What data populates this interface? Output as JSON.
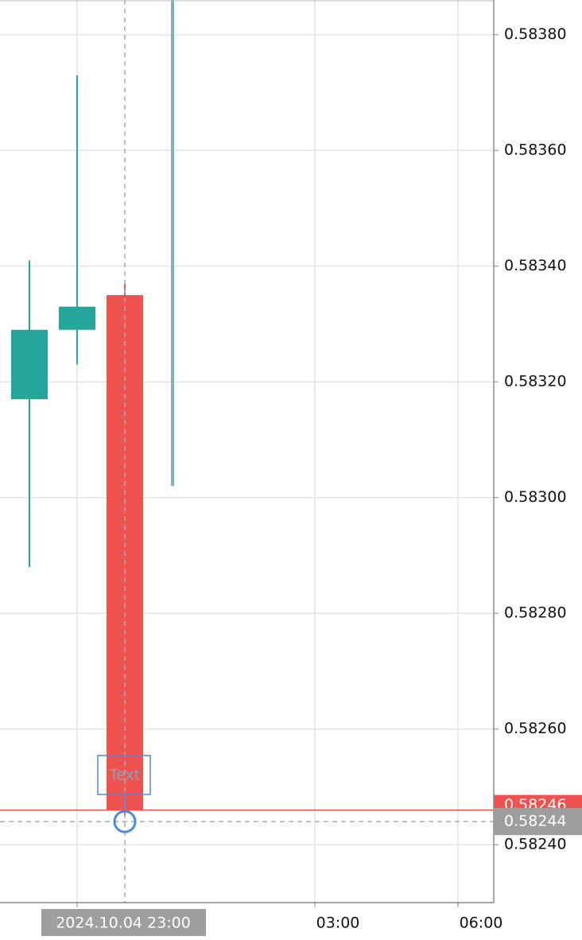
{
  "chart_data": {
    "type": "candlestick",
    "ylim": [
      0.5823,
      0.58386
    ],
    "yticks": [
      {
        "value": 0.5838,
        "label": "0.58380"
      },
      {
        "value": 0.5836,
        "label": "0.58360"
      },
      {
        "value": 0.5834,
        "label": "0.58340"
      },
      {
        "value": 0.5832,
        "label": "0.58320"
      },
      {
        "value": 0.583,
        "label": "0.58300"
      },
      {
        "value": 0.5828,
        "label": "0.58280"
      },
      {
        "value": 0.5826,
        "label": "0.58260"
      },
      {
        "value": 0.5824,
        "label": "0.58240"
      }
    ],
    "candles": [
      {
        "open": 0.58317,
        "high": 0.58341,
        "low": 0.58288,
        "close": 0.58329
      },
      {
        "open": 0.58329,
        "high": 0.58373,
        "low": 0.58323,
        "close": 0.58333
      },
      {
        "open": 0.58335,
        "high": 0.58337,
        "low": 0.58245,
        "close": 0.58246
      },
      {
        "high": 0.58386,
        "low": 0.58302
      }
    ],
    "up_color": "#26a69a",
    "down_color": "#ef5350",
    "flat_color": "#7fb3b5",
    "xticks": [
      "03:00",
      "06:00"
    ],
    "last_price": {
      "value": 0.58246,
      "label": "0.58246"
    },
    "crosshair": {
      "value": 0.58244,
      "label": "0.58244",
      "time": "2024.10.04 23:00"
    },
    "annotation": "Text",
    "grid": true
  }
}
